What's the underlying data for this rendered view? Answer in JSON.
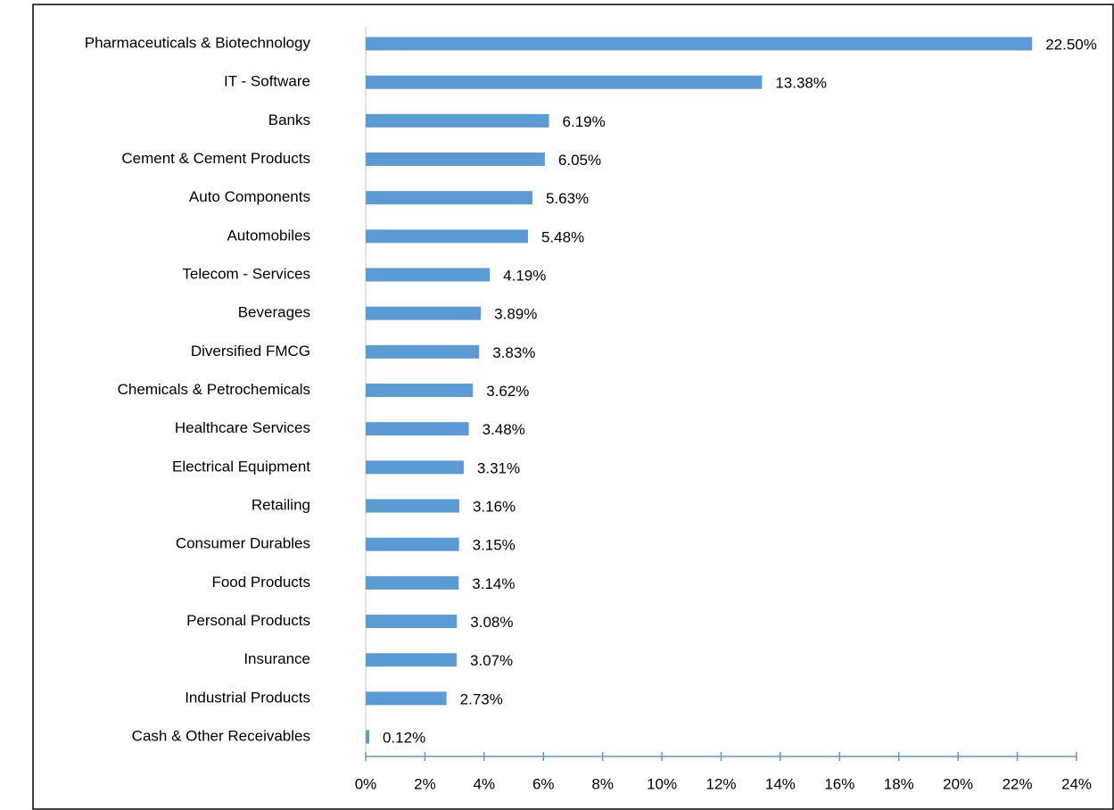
{
  "chart_data": {
    "type": "bar",
    "orientation": "horizontal",
    "categories": [
      "Pharmaceuticals & Biotechnology",
      "IT - Software",
      "Banks",
      "Cement & Cement Products",
      "Auto Components",
      "Automobiles",
      "Telecom - Services",
      "Beverages",
      "Diversified FMCG",
      "Chemicals & Petrochemicals",
      "Healthcare Services",
      "Electrical Equipment",
      "Retailing",
      "Consumer Durables",
      "Food Products",
      "Personal Products",
      "Insurance",
      "Industrial Products",
      "Cash & Other Receivables"
    ],
    "values": [
      22.5,
      13.38,
      6.19,
      6.05,
      5.63,
      5.48,
      4.19,
      3.89,
      3.83,
      3.62,
      3.48,
      3.31,
      3.16,
      3.15,
      3.14,
      3.08,
      3.07,
      2.73,
      0.12
    ],
    "value_labels": [
      "22.50%",
      "13.38%",
      "6.19%",
      "6.05%",
      "5.63%",
      "5.48%",
      "4.19%",
      "3.89%",
      "3.83%",
      "3.62%",
      "3.48%",
      "3.31%",
      "3.16%",
      "3.15%",
      "3.14%",
      "3.08%",
      "3.07%",
      "2.73%",
      "0.12%"
    ],
    "color": "#5b9bd5",
    "xlim": [
      0,
      24
    ],
    "xticks": [
      {
        "value": 0,
        "label": "0%"
      },
      {
        "value": 2,
        "label": "2%"
      },
      {
        "value": 4,
        "label": "4%"
      },
      {
        "value": 6,
        "label": "6%"
      },
      {
        "value": 8,
        "label": "8%"
      },
      {
        "value": 10,
        "label": "10%"
      },
      {
        "value": 12,
        "label": "12%"
      },
      {
        "value": 14,
        "label": "14%"
      },
      {
        "value": 16,
        "label": "16%"
      },
      {
        "value": 18,
        "label": "18%"
      },
      {
        "value": 20,
        "label": "20%"
      },
      {
        "value": 22,
        "label": "22%"
      },
      {
        "value": 24,
        "label": "24%"
      }
    ],
    "grid": false
  }
}
